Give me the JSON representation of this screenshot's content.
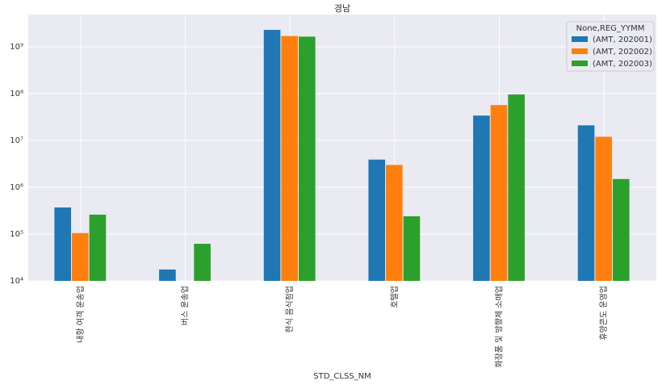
{
  "chart_data": {
    "type": "bar",
    "title": "경남",
    "x_label": "STD_CLSS_NM",
    "categories": [
      "내항 여객 운송업",
      "버스 운송업",
      "한식 음식점업",
      "호텔업",
      "화장품 및 방향제 소매업",
      "휴양콘도 운영업"
    ],
    "series": [
      {
        "name": "(AMT, 202001)",
        "color": "#1f77b4",
        "values": [
          370000,
          17500,
          2300000000,
          3900000,
          34000000,
          21000000
        ]
      },
      {
        "name": "(AMT, 202002)",
        "color": "#ff7f0e",
        "values": [
          105000,
          null,
          1700000000,
          3000000,
          57000000,
          12000000
        ]
      },
      {
        "name": "(AMT, 202003)",
        "color": "#2ca02c",
        "values": [
          260000,
          62000,
          1650000000,
          240000,
          96000000,
          1500000
        ]
      }
    ],
    "legend_title": "None,REG_YYMM",
    "legend": "upper right",
    "ylim": [
      10000,
      4900000000
    ],
    "log_y": true,
    "grid": true,
    "yticks": [
      {
        "value": 10000,
        "label": "10⁴"
      },
      {
        "value": 100000,
        "label": "10⁵"
      },
      {
        "value": 1000000,
        "label": "10⁶"
      },
      {
        "value": 10000000,
        "label": "10⁷"
      },
      {
        "value": 100000000,
        "label": "10⁸"
      },
      {
        "value": 1000000000,
        "label": "10⁹"
      }
    ]
  }
}
